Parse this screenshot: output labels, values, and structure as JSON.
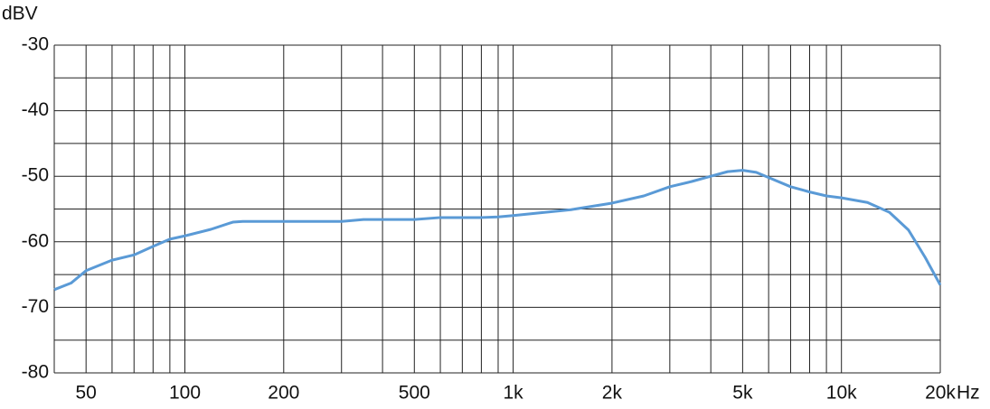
{
  "chart_data": {
    "type": "line",
    "y_label": "dBV",
    "x_label": "Hz",
    "log_x": true,
    "xlim": [
      40,
      20000
    ],
    "ylim": [
      -80,
      -30
    ],
    "xticks": [
      50,
      100,
      200,
      500,
      {
        "value": 1000,
        "label": "1k"
      },
      {
        "value": 2000,
        "label": "2k"
      },
      {
        "value": 5000,
        "label": "5k"
      },
      {
        "value": 10000,
        "label": "10k"
      },
      {
        "value": 20000,
        "label": "20k"
      }
    ],
    "xminor": [
      60,
      70,
      80,
      90,
      300,
      400,
      600,
      700,
      800,
      900,
      3000,
      4000,
      6000,
      7000,
      8000,
      9000
    ],
    "yticks": [
      -30,
      -40,
      -50,
      -60,
      -70,
      -80
    ],
    "yminor": [
      -35,
      -45,
      -55,
      -65,
      -75
    ],
    "grid": true,
    "series": [
      {
        "color": "#5a9ad6",
        "x": [
          40,
          45,
          50,
          60,
          70,
          80,
          90,
          100,
          120,
          140,
          150,
          200,
          300,
          350,
          500,
          600,
          800,
          900,
          1000,
          1500,
          2000,
          2500,
          3000,
          3500,
          4000,
          4500,
          5000,
          5500,
          6000,
          7000,
          8000,
          9000,
          10000,
          12000,
          14000,
          16000,
          18000,
          20000
        ],
        "values": [
          -67.3,
          -66.3,
          -64.4,
          -62.8,
          -62.0,
          -60.7,
          -59.6,
          -59.1,
          -58.1,
          -57.0,
          -56.9,
          -56.9,
          -56.9,
          -56.6,
          -56.6,
          -56.3,
          -56.3,
          -56.2,
          -56.0,
          -55.1,
          -54.1,
          -53.0,
          -51.6,
          -50.8,
          -50.0,
          -49.3,
          -49.1,
          -49.4,
          -50.2,
          -51.6,
          -52.4,
          -53.0,
          -53.3,
          -54.0,
          -55.5,
          -58.2,
          -62.4,
          -66.6
        ]
      }
    ]
  }
}
